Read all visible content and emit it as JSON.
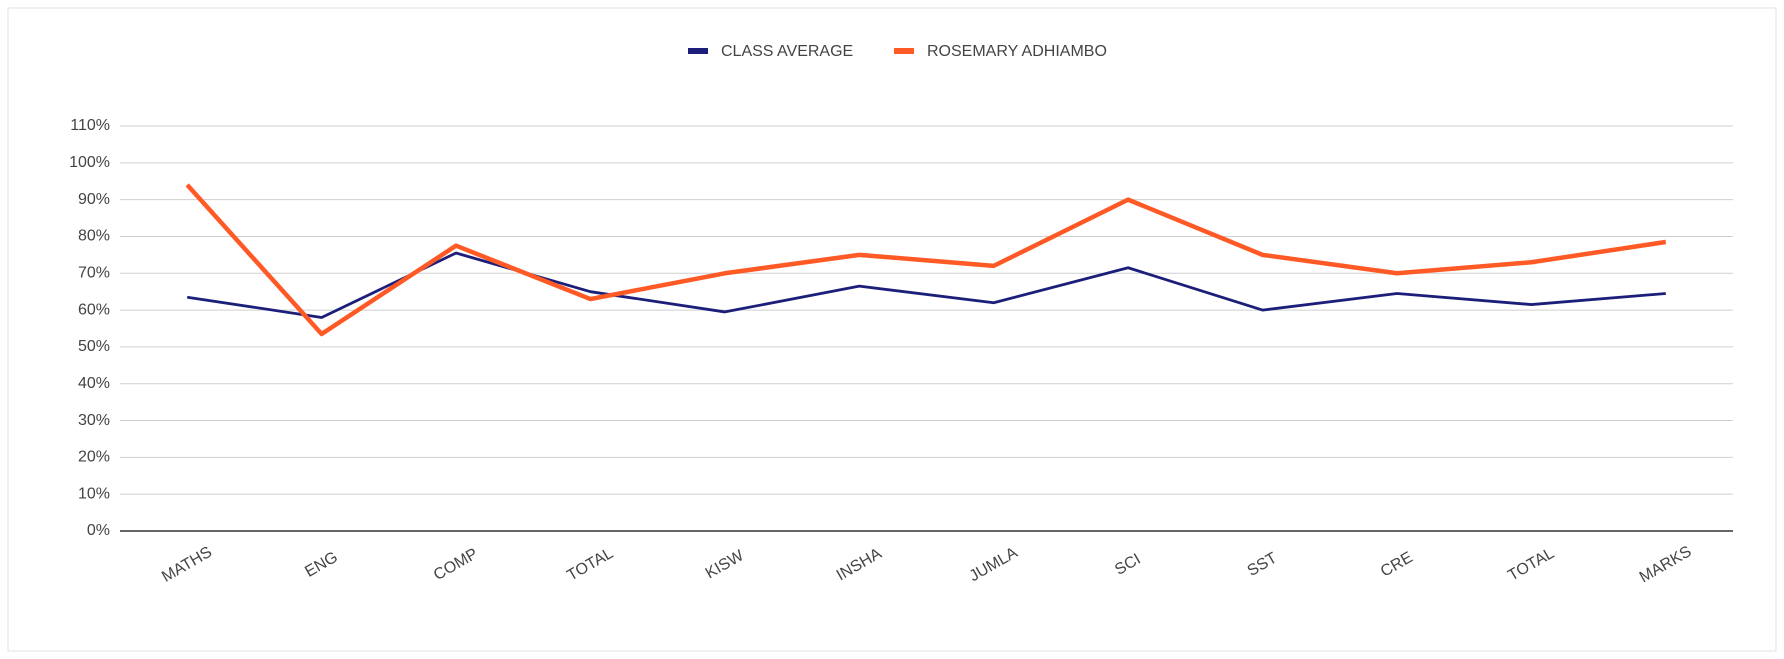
{
  "chart_data": {
    "type": "line",
    "categories": [
      "MATHS",
      "ENG",
      "COMP",
      "TOTAL",
      "KISW",
      "INSHA",
      "JUMLA",
      "SCI",
      "SST",
      "CRE",
      "TOTAL",
      "MARKS"
    ],
    "series": [
      {
        "name": "CLASS AVERAGE",
        "color": "#1c1f7a",
        "values": [
          63.5,
          58,
          75.5,
          65,
          59.5,
          66.5,
          62,
          71.5,
          60,
          64.5,
          61.5,
          64.5
        ]
      },
      {
        "name": "ROSEMARY ADHIAMBO",
        "color": "#ff5a26",
        "values": [
          94,
          53.5,
          77.5,
          63,
          70,
          75,
          72,
          90,
          75,
          70,
          73,
          78.5
        ]
      }
    ],
    "ylim": [
      0,
      110
    ],
    "yticks": [
      {
        "value": 0,
        "label": "0%"
      },
      {
        "value": 10,
        "label": "10%"
      },
      {
        "value": 20,
        "label": "20%"
      },
      {
        "value": 30,
        "label": "30%"
      },
      {
        "value": 40,
        "label": "40%"
      },
      {
        "value": 50,
        "label": "50%"
      },
      {
        "value": 60,
        "label": "60%"
      },
      {
        "value": 70,
        "label": "70%"
      },
      {
        "value": 80,
        "label": "80%"
      },
      {
        "value": 90,
        "label": "90%"
      },
      {
        "value": 100,
        "label": "100%"
      },
      {
        "value": 110,
        "label": "110%"
      }
    ],
    "grid": true,
    "legend": "top"
  }
}
